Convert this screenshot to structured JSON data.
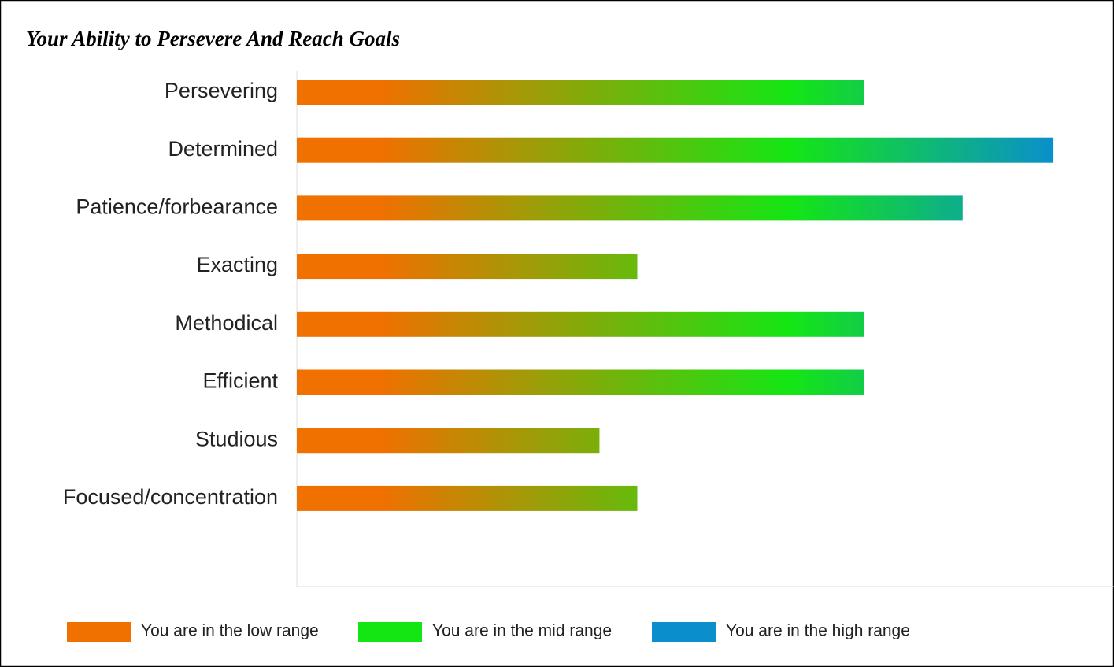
{
  "chart_data": {
    "type": "hbar",
    "title": "Your Ability to Persevere And Reach Goals",
    "categories": [
      "Persevering",
      "Determined",
      "Patience/forbearance",
      "Exacting",
      "Methodical",
      "Efficient",
      "Studious",
      "Focused/concentration"
    ],
    "values": [
      75,
      100,
      88,
      45,
      75,
      75,
      40,
      45
    ],
    "xlim": [
      0,
      108
    ],
    "legend": [
      {
        "label": "You are in the low range",
        "color": "#f07000"
      },
      {
        "label": "You are in the mid range",
        "color": "#14e614"
      },
      {
        "label": "You are in the high range",
        "color": "#0a8fcc"
      }
    ]
  }
}
